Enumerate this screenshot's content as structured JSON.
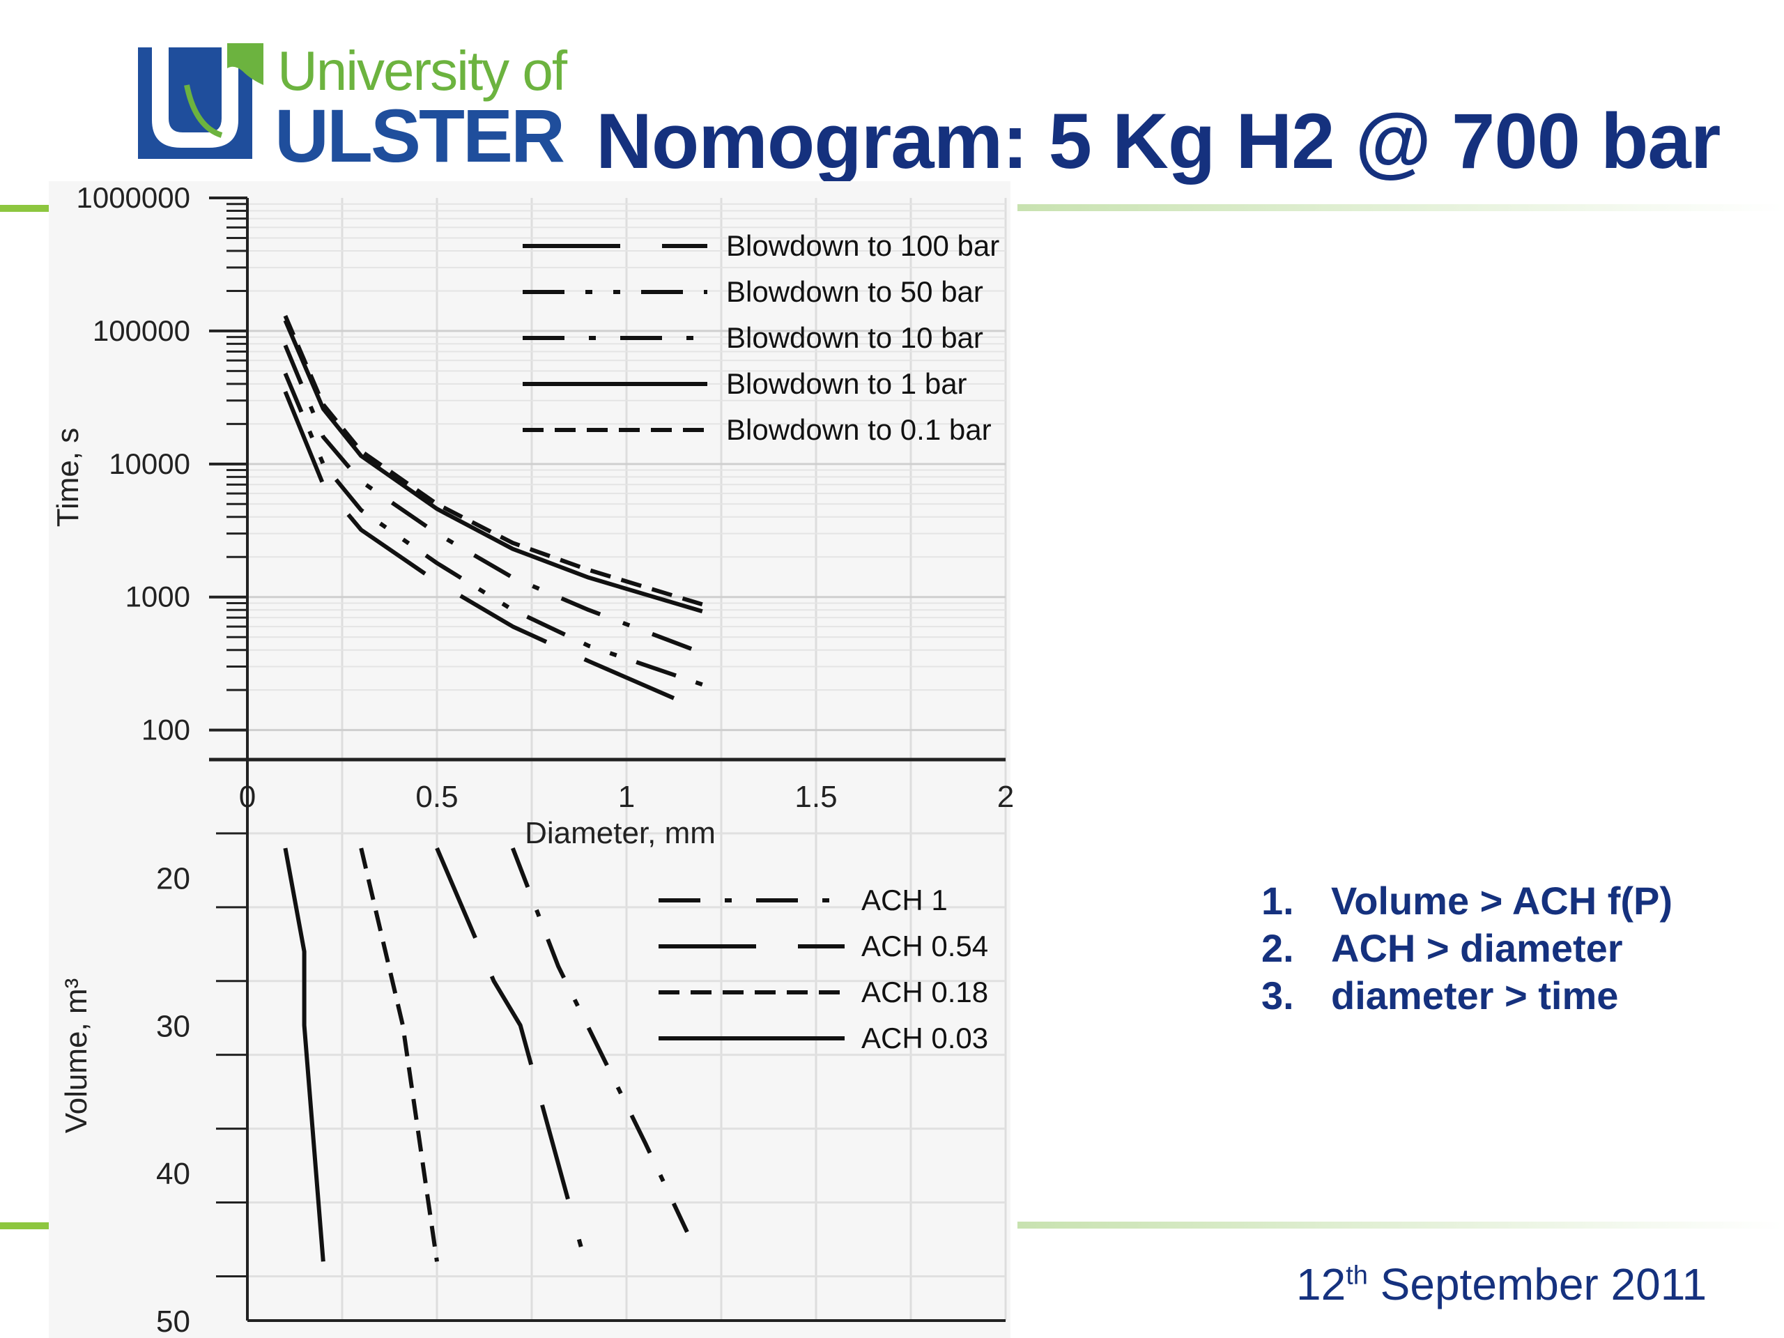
{
  "logo": {
    "line1": "University of",
    "line2": "ULSTER",
    "colors": {
      "blue": "#1f4e9c",
      "green": "#6cb33f"
    }
  },
  "slide": {
    "title": "Nomogram: 5 Kg H2 @ 700 bar",
    "steps": [
      {
        "num": "1.",
        "text": "Volume > ACH f(P)"
      },
      {
        "num": "2.",
        "text": "ACH > diameter"
      },
      {
        "num": "3.",
        "text": "diameter > time"
      }
    ],
    "date_day": "12",
    "date_suffix": "th",
    "date_rest": " September 2011",
    "accent_color": "#8dc63f",
    "title_color": "#15317e"
  },
  "chart_data": [
    {
      "type": "line",
      "xlabel": "Diameter, mm",
      "ylabel": "Time, s",
      "yscale": "log",
      "xlim": [
        0,
        2
      ],
      "ylim": [
        60,
        1000000
      ],
      "xticks": [
        "0",
        "0.5",
        "1",
        "1.5",
        "2"
      ],
      "yticks": [
        "1000000",
        "100000",
        "10000",
        "1000",
        "100"
      ],
      "grid": true,
      "legend": "top-right",
      "series": [
        {
          "name": "Blowdown to 100 bar",
          "dash": "long-gap",
          "x": [
            0.1,
            0.2,
            0.3,
            0.5,
            0.7,
            0.9,
            1.2
          ],
          "y": [
            35000,
            7000,
            3200,
            1300,
            600,
            330,
            140
          ]
        },
        {
          "name": "Blowdown to 50 bar",
          "dash": "dash-dot-dot",
          "x": [
            0.1,
            0.2,
            0.3,
            0.5,
            0.7,
            0.9,
            1.2
          ],
          "y": [
            48000,
            10000,
            4500,
            1800,
            800,
            430,
            220
          ]
        },
        {
          "name": "Blowdown to 10 bar",
          "dash": "dash-dot",
          "x": [
            0.1,
            0.2,
            0.3,
            0.5,
            0.7,
            0.9,
            1.2
          ],
          "y": [
            78000,
            16000,
            7400,
            3000,
            1400,
            800,
            380
          ]
        },
        {
          "name": "Blowdown to 1 bar",
          "dash": "solid",
          "x": [
            0.1,
            0.2,
            0.3,
            0.5,
            0.7,
            0.9,
            1.2
          ],
          "y": [
            120000,
            26000,
            11500,
            4600,
            2300,
            1400,
            780
          ]
        },
        {
          "name": "Blowdown to 0.1 bar",
          "dash": "dashed",
          "x": [
            0.1,
            0.2,
            0.3,
            0.5,
            0.7,
            0.9,
            1.2
          ],
          "y": [
            130000,
            28000,
            12500,
            5000,
            2550,
            1600,
            880
          ]
        }
      ]
    },
    {
      "type": "line",
      "ylabel": "Volume, m³",
      "xlim": [
        0,
        2
      ],
      "ylim": [
        50,
        12
      ],
      "yticks": [
        "20",
        "30",
        "40",
        "50"
      ],
      "grid": true,
      "legend": "top-right",
      "series": [
        {
          "name": "ACH 1",
          "dash": "dash-dot",
          "x": [
            0.7,
            0.82,
            1.05,
            1.16
          ],
          "y": [
            18,
            26,
            38,
            44
          ]
        },
        {
          "name": "ACH 0.54",
          "dash": "long-gap",
          "x": [
            0.5,
            0.65,
            0.72,
            0.88
          ],
          "y": [
            18,
            27,
            30,
            45
          ]
        },
        {
          "name": "ACH 0.18",
          "dash": "dashed",
          "x": [
            0.3,
            0.41,
            0.5
          ],
          "y": [
            18,
            30,
            46
          ]
        },
        {
          "name": "ACH 0.03",
          "dash": "solid",
          "x": [
            0.1,
            0.15,
            0.15,
            0.2
          ],
          "y": [
            18,
            25,
            30,
            46
          ]
        }
      ]
    }
  ]
}
